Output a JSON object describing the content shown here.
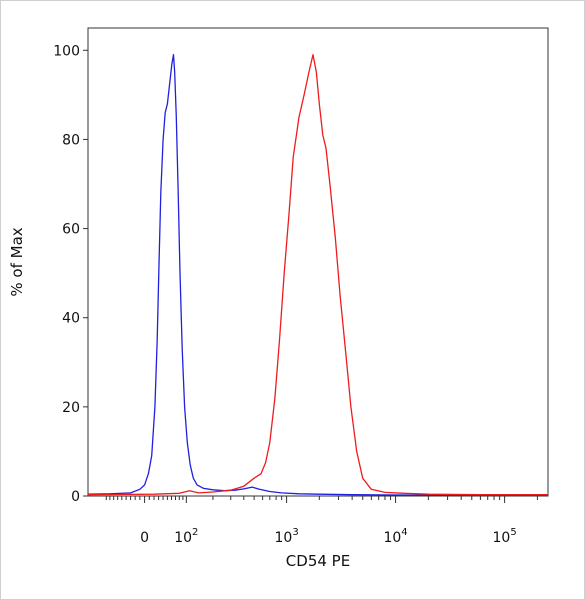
{
  "chart_data": {
    "type": "line",
    "xlabel": "CD54 PE",
    "ylabel": "% of Max",
    "x_scale": "biexponential",
    "xlim": [
      -150,
      250000
    ],
    "ylim": [
      0,
      105
    ],
    "x_ticks": [
      {
        "value": 0,
        "base": "0",
        "exp": ""
      },
      {
        "value": 100,
        "base": "10",
        "exp": "2"
      },
      {
        "value": 1000,
        "base": "10",
        "exp": "3"
      },
      {
        "value": 10000,
        "base": "10",
        "exp": "4"
      },
      {
        "value": 100000,
        "base": "10",
        "exp": "5"
      }
    ],
    "y_ticks": [
      0,
      20,
      40,
      60,
      80,
      100
    ],
    "grid": false,
    "series": [
      {
        "color": "#2020e0",
        "points": [
          [
            -150,
            0.4
          ],
          [
            -80,
            0.5
          ],
          [
            -30,
            0.7
          ],
          [
            -10,
            1.5
          ],
          [
            0,
            2.5
          ],
          [
            8,
            5
          ],
          [
            15,
            9
          ],
          [
            22,
            20
          ],
          [
            27,
            35
          ],
          [
            31,
            52
          ],
          [
            35,
            68
          ],
          [
            40,
            80
          ],
          [
            45,
            86
          ],
          [
            50,
            88
          ],
          [
            56,
            93
          ],
          [
            61,
            97
          ],
          [
            65,
            99
          ],
          [
            68,
            95
          ],
          [
            72,
            85
          ],
          [
            77,
            68
          ],
          [
            82,
            50
          ],
          [
            88,
            33
          ],
          [
            95,
            20
          ],
          [
            103,
            12
          ],
          [
            112,
            7
          ],
          [
            122,
            4
          ],
          [
            135,
            2.5
          ],
          [
            160,
            1.7
          ],
          [
            200,
            1.4
          ],
          [
            260,
            1.2
          ],
          [
            330,
            1.3
          ],
          [
            400,
            1.6
          ],
          [
            480,
            2.0
          ],
          [
            560,
            1.5
          ],
          [
            700,
            1.0
          ],
          [
            900,
            0.7
          ],
          [
            1300,
            0.5
          ],
          [
            2000,
            0.4
          ],
          [
            4000,
            0.3
          ],
          [
            20000,
            0.2
          ],
          [
            250000,
            0.2
          ]
        ]
      },
      {
        "color": "#ee1c1c",
        "points": [
          [
            -150,
            0.3
          ],
          [
            20,
            0.4
          ],
          [
            80,
            0.6
          ],
          [
            110,
            1.2
          ],
          [
            140,
            0.7
          ],
          [
            200,
            0.9
          ],
          [
            300,
            1.3
          ],
          [
            400,
            2.2
          ],
          [
            500,
            4.0
          ],
          [
            580,
            5.0
          ],
          [
            640,
            7.5
          ],
          [
            700,
            12
          ],
          [
            780,
            22
          ],
          [
            860,
            35
          ],
          [
            950,
            50
          ],
          [
            1050,
            63
          ],
          [
            1150,
            76
          ],
          [
            1300,
            85
          ],
          [
            1450,
            90
          ],
          [
            1600,
            95
          ],
          [
            1750,
            99
          ],
          [
            1880,
            95
          ],
          [
            2000,
            88
          ],
          [
            2150,
            81
          ],
          [
            2300,
            78
          ],
          [
            2500,
            70
          ],
          [
            2800,
            58
          ],
          [
            3100,
            45
          ],
          [
            3500,
            32
          ],
          [
            3900,
            20
          ],
          [
            4400,
            10
          ],
          [
            5000,
            4
          ],
          [
            6000,
            1.5
          ],
          [
            8000,
            0.8
          ],
          [
            12000,
            0.6
          ],
          [
            20000,
            0.4
          ],
          [
            60000,
            0.3
          ],
          [
            250000,
            0.3
          ]
        ]
      }
    ]
  }
}
